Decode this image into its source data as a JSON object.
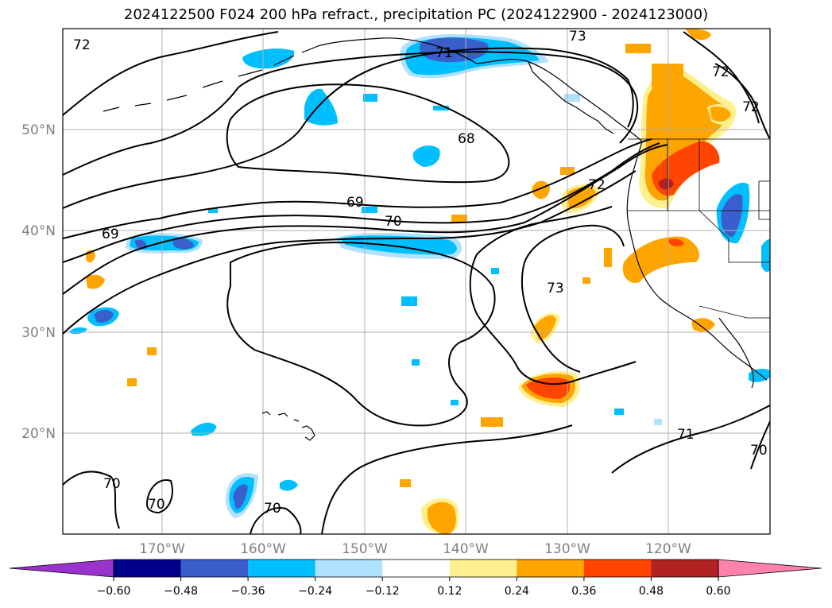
{
  "title": "2024122500 F024 200 hPa refract., precipitation PC (2024122900 - 2024123000)",
  "lat_labels": [
    "50°N",
    "40°N",
    "30°N",
    "20°N"
  ],
  "lon_labels": [
    "170°W",
    "160°W",
    "150°W",
    "140°W",
    "130°W",
    "120°W"
  ],
  "colorbar": {
    "ticks": [
      "−0.60",
      "−0.48",
      "−0.36",
      "−0.24",
      "−0.12",
      "0.12",
      "0.24",
      "0.36",
      "0.48",
      "0.60"
    ],
    "colors": [
      "#9a32cd",
      "#00008b",
      "#3a5fcd",
      "#00bfff",
      "#b0e2ff",
      "#ffffff",
      "#fff08f",
      "#ffa500",
      "#ff4500",
      "#b22222",
      "#ff82ab"
    ]
  },
  "contour_labels": [
    "72",
    "73",
    "71",
    "72",
    "72",
    "68",
    "72",
    "69",
    "70",
    "69",
    "73",
    "71",
    "70",
    "70",
    "70",
    "70"
  ],
  "fill_colors": {
    "light_blue": "#b0e2ff",
    "blue": "#00bfff",
    "royal": "#3a5fcd",
    "yellow": "#fff08f",
    "orange": "#ffa500",
    "red": "#ff4500",
    "dark_red": "#b22222"
  }
}
